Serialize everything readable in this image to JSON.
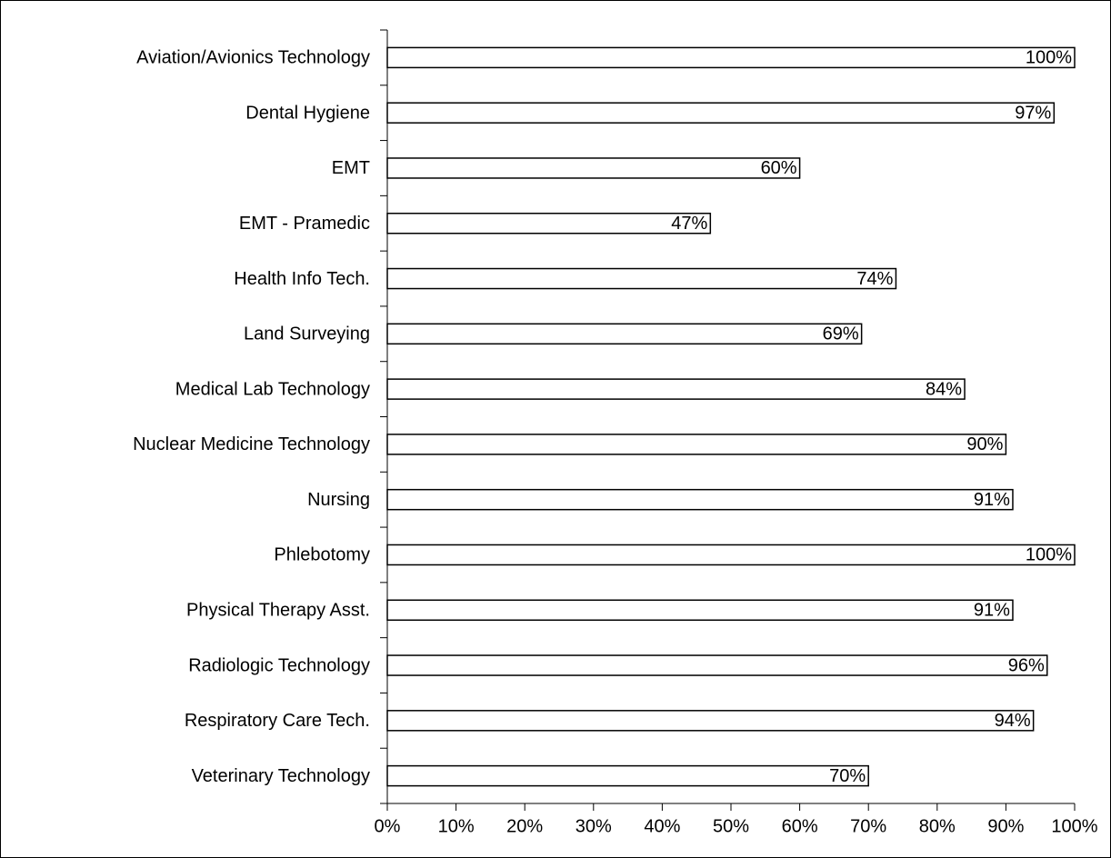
{
  "chart_data": {
    "type": "bar",
    "orientation": "horizontal",
    "categories": [
      "Aviation/Avionics Technology",
      "Dental Hygiene",
      "EMT",
      "EMT - Pramedic",
      "Health Info Tech.",
      "Land Surveying",
      "Medical Lab Technology",
      "Nuclear Medicine Technology",
      "Nursing",
      "Phlebotomy",
      "Physical Therapy Asst.",
      "Radiologic Technology",
      "Respiratory Care Tech.",
      "Veterinary Technology"
    ],
    "values": [
      100,
      97,
      60,
      47,
      74,
      69,
      84,
      90,
      91,
      100,
      91,
      96,
      94,
      70
    ],
    "value_labels": [
      "100%",
      "97%",
      "60%",
      "47%",
      "74%",
      "69%",
      "84%",
      "90%",
      "91%",
      "100%",
      "91%",
      "96%",
      "94%",
      "70%"
    ],
    "color": "#ffffff",
    "xlim": [
      0,
      100
    ],
    "xticks": [
      {
        "value": 0,
        "label": "0%"
      },
      {
        "value": 10,
        "label": "10%"
      },
      {
        "value": 20,
        "label": "20%"
      },
      {
        "value": 30,
        "label": "30%"
      },
      {
        "value": 40,
        "label": "40%"
      },
      {
        "value": 50,
        "label": "50%"
      },
      {
        "value": 60,
        "label": "60%"
      },
      {
        "value": 70,
        "label": "70%"
      },
      {
        "value": 80,
        "label": "80%"
      },
      {
        "value": 90,
        "label": "90%"
      },
      {
        "value": 100,
        "label": "100%"
      }
    ],
    "grid": false
  }
}
